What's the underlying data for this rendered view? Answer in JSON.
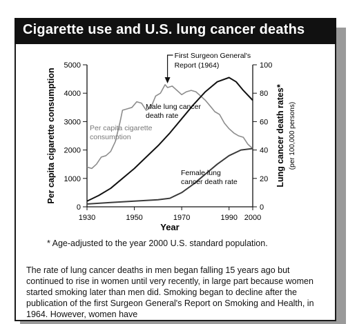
{
  "title": "Cigarette use and U.S. lung cancer deaths",
  "footnote": "* Age-adjusted to the year 2000 U.S. standard population.",
  "body_text": "The rate of lung cancer deaths in men began falling 15 years ago but continued to rise in women until very recently, in large part because women started smoking later than men did. Smoking began to decline after the publication of the first Surgeon General's Report on Smoking and Health, in 1964. However, women have",
  "chart_data": {
    "type": "line",
    "title": "Cigarette use and U.S. lung cancer deaths",
    "xlabel": "Year",
    "ylabel_left": "Per capita cigarette consumption",
    "ylabel_right": "Lung cancer death rates*",
    "ylabel_right_sub": "(per 100,000 persons)",
    "xlim": [
      1930,
      2000
    ],
    "ylim_left": [
      0,
      5000
    ],
    "ylim_right": [
      0,
      100
    ],
    "x_ticks": [
      "1930",
      "1950",
      "1970",
      "1990",
      "2000"
    ],
    "x_tick_values": [
      1930,
      1950,
      1970,
      1990,
      2000
    ],
    "left_ticks": [
      "0",
      "1000",
      "2000",
      "3000",
      "4000",
      "5000"
    ],
    "left_tick_values": [
      0,
      1000,
      2000,
      3000,
      4000,
      5000
    ],
    "right_ticks": [
      "0",
      "20",
      "40",
      "60",
      "80",
      "100"
    ],
    "right_tick_values": [
      0,
      20,
      40,
      60,
      80,
      100
    ],
    "grid": false,
    "series": [
      {
        "name": "Per capita cigarette consumption",
        "label_lines": [
          "Per capita cigarette",
          "consumption"
        ],
        "axis": "left",
        "color": "#8c8c8c",
        "x": [
          1930,
          1932,
          1934,
          1936,
          1938,
          1940,
          1942,
          1944,
          1945,
          1947,
          1949,
          1951,
          1953,
          1955,
          1957,
          1959,
          1961,
          1963,
          1964,
          1966,
          1968,
          1970,
          1972,
          1974,
          1976,
          1978,
          1980,
          1982,
          1984,
          1986,
          1988,
          1990,
          1992,
          1994,
          1996,
          1998,
          2000
        ],
        "y": [
          1400,
          1350,
          1500,
          1750,
          1800,
          1950,
          2300,
          3000,
          3400,
          3450,
          3500,
          3700,
          3650,
          3400,
          3500,
          3900,
          4000,
          4300,
          4200,
          4250,
          4100,
          3950,
          4050,
          4100,
          4050,
          3900,
          3750,
          3550,
          3350,
          3250,
          2950,
          2750,
          2600,
          2500,
          2450,
          2200,
          2050
        ]
      },
      {
        "name": "Male lung cancer death rate",
        "label_lines": [
          "Male lung cancer",
          "death rate"
        ],
        "axis": "right",
        "color": "#111111",
        "x": [
          1930,
          1935,
          1940,
          1945,
          1950,
          1955,
          1960,
          1965,
          1970,
          1975,
          1980,
          1985,
          1990,
          1993,
          1996,
          2000
        ],
        "y": [
          4,
          8,
          13,
          20,
          27,
          35,
          43,
          52,
          62,
          72,
          81,
          88,
          91,
          88,
          82,
          75
        ]
      },
      {
        "name": "Female lung cancer death rate",
        "label_lines": [
          "Female lung",
          "cancer death rate"
        ],
        "axis": "right",
        "color": "#3a3a3a",
        "x": [
          1930,
          1940,
          1950,
          1960,
          1965,
          1970,
          1975,
          1980,
          1985,
          1990,
          1995,
          2000
        ],
        "y": [
          2,
          3,
          4,
          5,
          6,
          10,
          16,
          23,
          30,
          36,
          40,
          41
        ]
      }
    ],
    "annotations": [
      {
        "label_lines": [
          "First Surgeon General's",
          "Report (1964)"
        ],
        "x": 1964
      }
    ]
  }
}
